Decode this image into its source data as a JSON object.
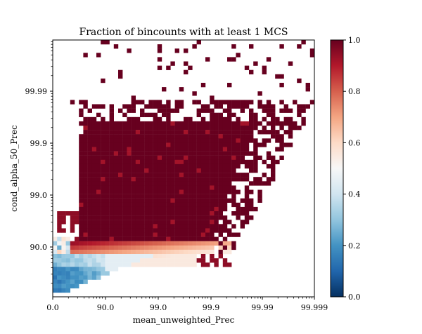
{
  "chart_data": {
    "type": "heatmap",
    "title": "Fraction of bincounts with at least 1 MCS",
    "xlabel": "mean_unweighted_Prec",
    "ylabel": "cond_alpha_50_Prec",
    "x_scale": "log of (100 - value), reversed",
    "y_scale": "log of (100 - value), reversed",
    "x_ticks": [
      "0.0",
      "90.0",
      "99.0",
      "99.9",
      "99.99",
      "99.999"
    ],
    "y_ticks": [
      "90.0",
      "99.0",
      "99.9",
      "99.99"
    ],
    "colorbar": {
      "range": [
        0.0,
        1.0
      ],
      "ticks": [
        "0.0",
        "0.2",
        "0.4",
        "0.6",
        "0.8",
        "1.0"
      ],
      "colormap": "RdBu_r"
    },
    "grid": false,
    "description_of_pattern": "dense region of fraction 1.0 above y=90.0 between x=90.0 and x=99.9; transition band near y=90.0 where fraction drops through 0.6-0.8; values 0.1-0.4 below y=90.0 at low x; scattered isolated 1.0 cells near the top edge"
  }
}
